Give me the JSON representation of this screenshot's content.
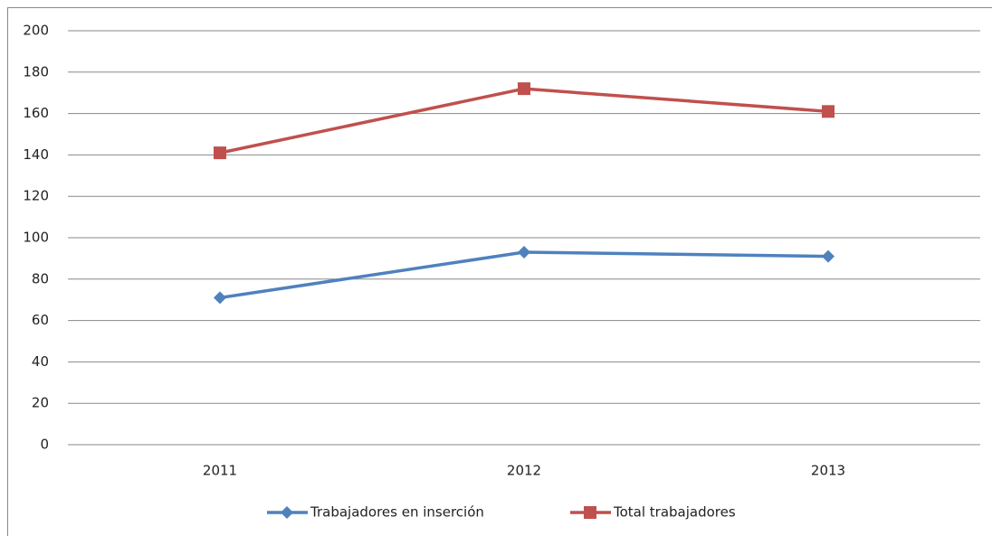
{
  "chart_data": {
    "type": "line",
    "categories": [
      "2011",
      "2012",
      "2013"
    ],
    "series": [
      {
        "name": "Trabajadores en inserción",
        "color": "#4f81bd",
        "marker": "diamond",
        "values": [
          71,
          93,
          91
        ]
      },
      {
        "name": "Total trabajadores",
        "color": "#c0504d",
        "marker": "square",
        "values": [
          141,
          172,
          161
        ]
      }
    ],
    "ylim": [
      0,
      200
    ],
    "yticks": [
      0,
      20,
      40,
      60,
      80,
      100,
      120,
      140,
      160,
      180,
      200
    ],
    "grid": true,
    "legend": "bottom"
  }
}
